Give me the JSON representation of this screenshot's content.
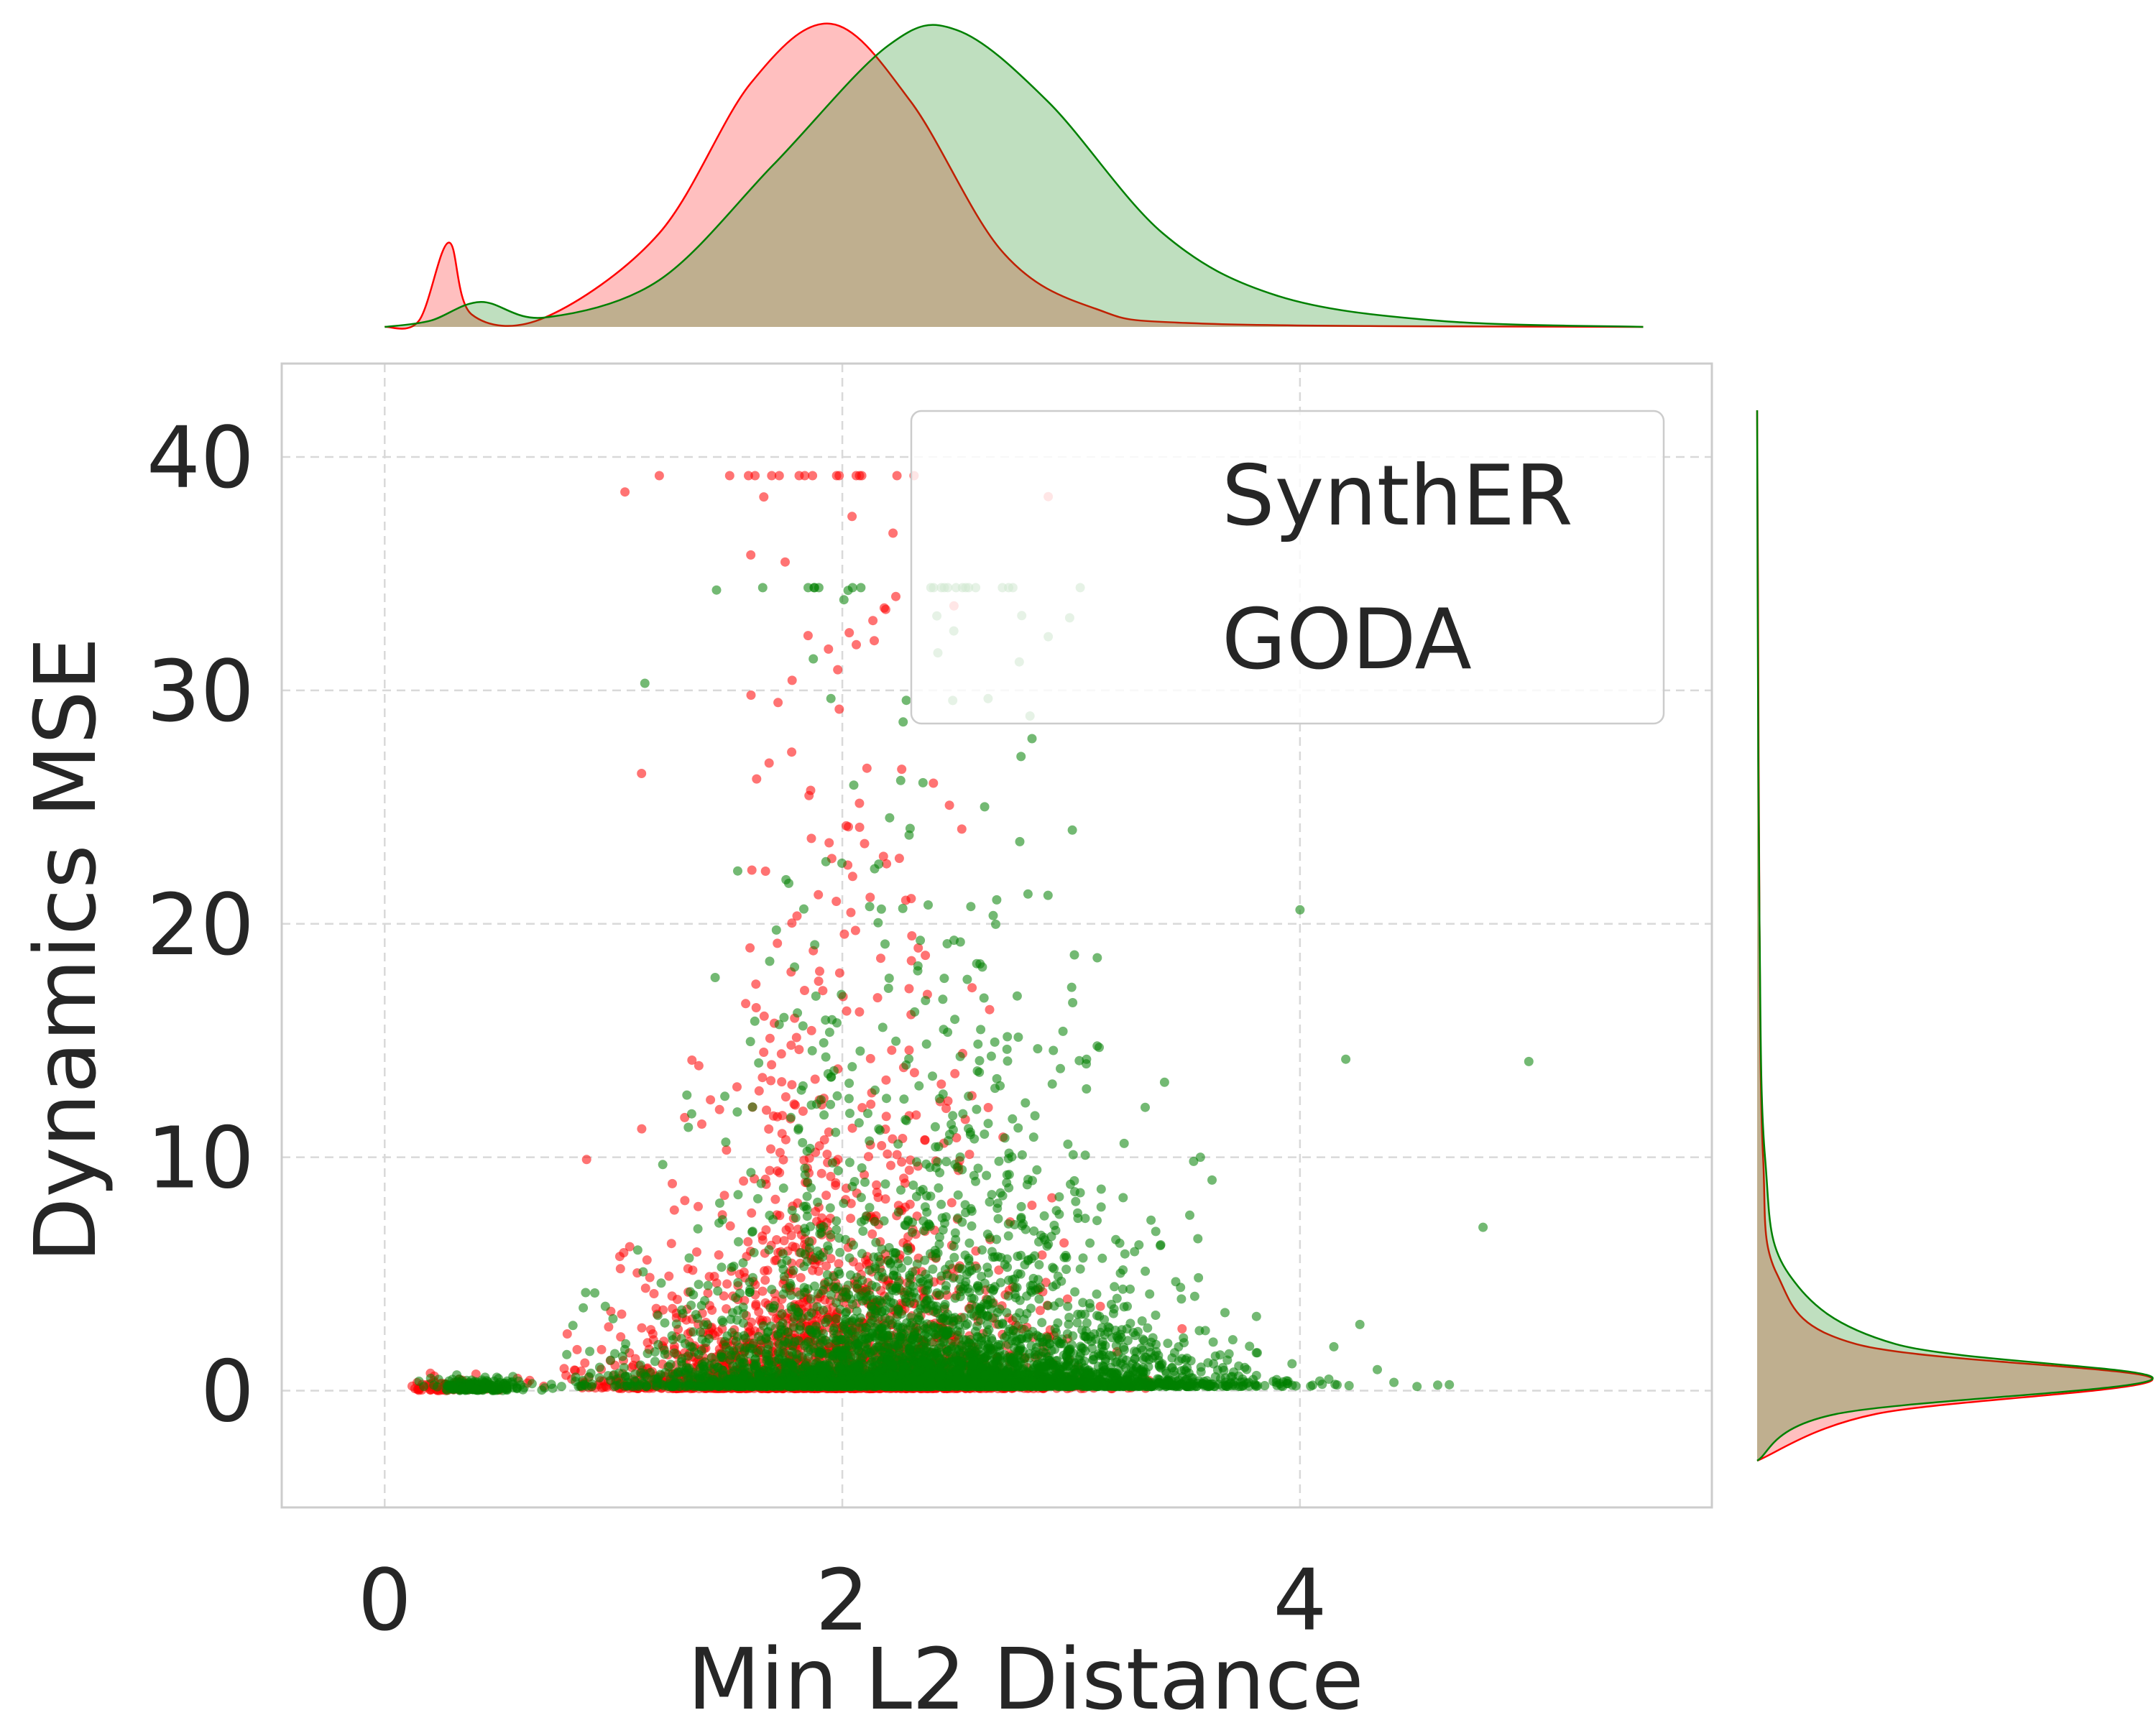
{
  "chart_data": {
    "type": "scatter",
    "title": "",
    "xlabel": "Min L2 Distance",
    "ylabel": "Dynamics MSE",
    "xlim": [
      -0.45,
      5.8
    ],
    "ylim": [
      -5,
      44
    ],
    "x_ticks": [
      0,
      2,
      4
    ],
    "y_ticks": [
      0,
      10,
      20,
      30,
      40
    ],
    "x_tick_labels": [
      "0",
      "2",
      "4"
    ],
    "y_tick_labels": [
      "0",
      "10",
      "20",
      "30",
      "40"
    ],
    "grid": true,
    "legend_position": "top-right",
    "marginals": {
      "top": "kde",
      "right": "kde"
    },
    "series": [
      {
        "name": "SynthER",
        "color": "#ff0000",
        "fill": "#ffbfbf",
        "x_distribution": {
          "mean": 1.95,
          "std": 0.45,
          "range": [
            0.12,
            4.1
          ],
          "secondary_peak": 0.28
        },
        "y_distribution": {
          "shape": "heavy-tailed",
          "mode": 0.3,
          "max": 39.2
        },
        "marginal_x_density": [
          [
            0,
            0
          ],
          [
            0.15,
            0.02
          ],
          [
            0.28,
            0.27
          ],
          [
            0.38,
            0.04
          ],
          [
            0.7,
            0.03
          ],
          [
            1.2,
            0.3
          ],
          [
            1.6,
            0.78
          ],
          [
            1.95,
            0.97
          ],
          [
            2.3,
            0.72
          ],
          [
            2.7,
            0.24
          ],
          [
            3.1,
            0.06
          ],
          [
            3.6,
            0.01
          ],
          [
            5.5,
            0
          ]
        ],
        "marginal_y_density": [
          [
            -3,
            0
          ],
          [
            -1,
            0.3
          ],
          [
            0.5,
            1.0
          ],
          [
            2,
            0.25
          ],
          [
            5,
            0.05
          ],
          [
            10,
            0.015
          ],
          [
            20,
            0.006
          ],
          [
            35,
            0.002
          ],
          [
            42,
            0
          ]
        ],
        "outliers": [
          [
            1.05,
            38.5
          ],
          [
            1.2,
            39.2
          ],
          [
            2.9,
            38.3
          ],
          [
            1.6,
            35.8
          ],
          [
            1.75,
            35.5
          ]
        ]
      },
      {
        "name": "GODA",
        "color": "#008000",
        "fill": "#c1e0c1",
        "x_distribution": {
          "mean": 2.4,
          "std": 0.62,
          "range": [
            0.15,
            5.3
          ],
          "secondary_peak": 0.42
        },
        "y_distribution": {
          "shape": "heavy-tailed",
          "mode": 0.6,
          "max": 34.4
        },
        "marginal_x_density": [
          [
            0,
            0
          ],
          [
            0.2,
            0.02
          ],
          [
            0.42,
            0.08
          ],
          [
            0.7,
            0.03
          ],
          [
            1.2,
            0.15
          ],
          [
            1.7,
            0.52
          ],
          [
            2.2,
            0.9
          ],
          [
            2.5,
            0.95
          ],
          [
            2.9,
            0.72
          ],
          [
            3.4,
            0.3
          ],
          [
            3.9,
            0.1
          ],
          [
            4.6,
            0.02
          ],
          [
            5.5,
            0
          ]
        ],
        "marginal_y_density": [
          [
            -3,
            0
          ],
          [
            -1,
            0.2
          ],
          [
            0.5,
            1.0
          ],
          [
            2,
            0.35
          ],
          [
            5,
            0.08
          ],
          [
            10,
            0.02
          ],
          [
            20,
            0.006
          ],
          [
            35,
            0.001
          ],
          [
            42,
            0
          ]
        ],
        "outliers": [
          [
            1.45,
            34.3
          ],
          [
            2.9,
            32.3
          ],
          [
            4.0,
            20.6
          ],
          [
            5.0,
            14.1
          ],
          [
            4.2,
            14.2
          ],
          [
            4.8,
            7
          ]
        ]
      }
    ]
  }
}
